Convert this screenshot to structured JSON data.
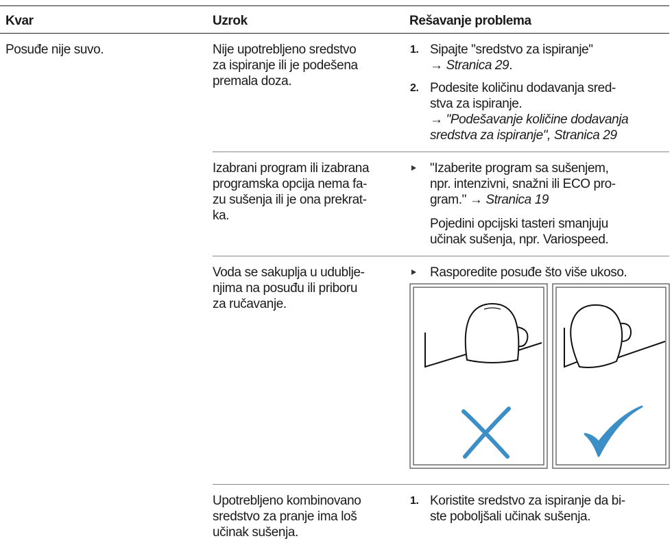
{
  "header": {
    "col1": "Kvar",
    "col2": "Uzrok",
    "col3": "Rešavanje problema"
  },
  "fault": "Posuđe nije suvo.",
  "rows": [
    {
      "cause": [
        "Nije upotrebljeno sredstvo",
        "za ispiranje ili je podešena",
        "premala doza."
      ],
      "steps": [
        {
          "number": "1.",
          "lines": [
            "Sipajte \"sredstvo za ispiranje\""
          ],
          "arrow": "→",
          "ref": [
            "Stranica 29"
          ],
          "suffix": "."
        },
        {
          "number": "2.",
          "lines": [
            "Podesite količinu dodavanja sred-",
            "stva za ispiranje."
          ],
          "arrow": "→",
          "ref": [
            "\"Podešavanje količine dodavanja",
            "sredstva za ispiranje\", Stranica 29"
          ]
        }
      ]
    },
    {
      "cause": [
        "Izabrani program ili izabrana",
        "programska opcija nema fa-",
        "zu sušenja ili je ona prekrat-",
        "ka."
      ],
      "bullet": {
        "lines": [
          "\"Izaberite program sa sušenjem,",
          "npr. intenzivni, snažni ili ECO pro-",
          "gram.\""
        ],
        "arrow": "→",
        "ref": "Stranica 19"
      },
      "note": [
        "Pojedini opcijski tasteri smanjuju",
        "učinak sušenja, npr. Variospeed."
      ]
    },
    {
      "cause": [
        "Voda se sakuplja u udublje-",
        "njima na posuđu ili priboru",
        "za ručavanje."
      ],
      "bullet": {
        "lines": [
          "Rasporedite posuđe što više ukoso."
        ]
      }
    },
    {
      "cause": [
        "Upotrebljeno kombinovano",
        "sredstvo za pranje ima loš",
        "učinak sušenja."
      ],
      "steps": [
        {
          "number": "1.",
          "lines": [
            "Koristite sredstvo za ispiranje da bi-",
            "ste poboljšali učinak sušenja."
          ]
        }
      ]
    }
  ]
}
